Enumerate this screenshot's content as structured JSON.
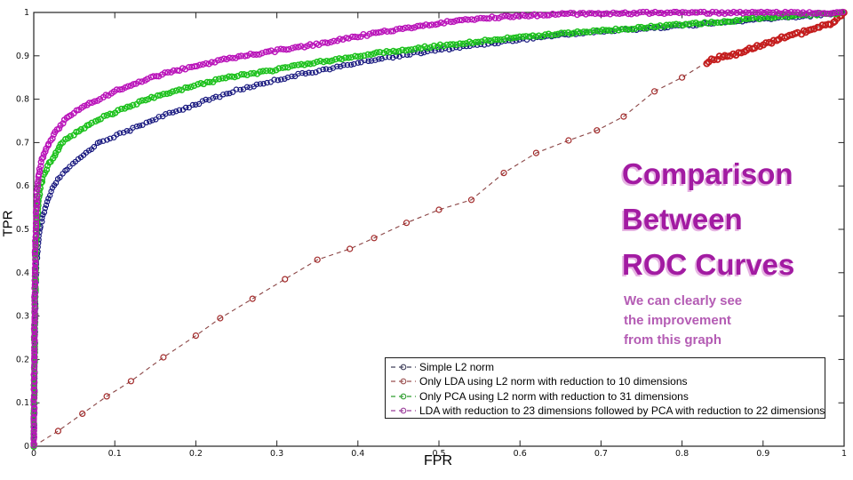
{
  "page": {
    "background": "#ffffff"
  },
  "title_block": {
    "lines": [
      "Comparison",
      "Between",
      "ROC Curves"
    ],
    "color": "#a21ba2",
    "shadow_color": "#e6b3e2",
    "subtitle_lines": [
      "We can clearly see",
      "the improvement",
      "from this graph"
    ],
    "subtitle_color": "#b45cb4"
  },
  "chart_data": {
    "type": "line",
    "title": "",
    "xlabel": "FPR",
    "ylabel": "TPR",
    "xlim": [
      0,
      1
    ],
    "ylim": [
      0,
      1
    ],
    "grid": false,
    "legend_position": "south-inside",
    "x_tick_labels": [
      "0",
      "0.1",
      "0.2",
      "0.3",
      "0.4",
      "0.5",
      "0.6",
      "0.7",
      "0.8",
      "0.9",
      "1"
    ],
    "y_tick_labels": [
      "0",
      "0.1",
      "0.2",
      "0.3",
      "0.4",
      "0.5",
      "0.6",
      "0.7",
      "0.8",
      "0.9",
      "1"
    ],
    "axis_color": "#222222",
    "series": [
      {
        "name": "Simple L2 norm",
        "color": "#15157d",
        "legend_color": "#40405c",
        "line_style": "dashed",
        "marker": "o",
        "marker_spacing": 4.0,
        "marker_radius": 2.6,
        "marker_stroke": 1.2,
        "points": [
          [
            0,
            0
          ],
          [
            0.001,
            0.2
          ],
          [
            0.002,
            0.32
          ],
          [
            0.003,
            0.41
          ],
          [
            0.005,
            0.46
          ],
          [
            0.008,
            0.5
          ],
          [
            0.012,
            0.535
          ],
          [
            0.017,
            0.565
          ],
          [
            0.023,
            0.592
          ],
          [
            0.03,
            0.615
          ],
          [
            0.042,
            0.64
          ],
          [
            0.058,
            0.665
          ],
          [
            0.08,
            0.7
          ],
          [
            0.1,
            0.715
          ],
          [
            0.12,
            0.73
          ],
          [
            0.15,
            0.755
          ],
          [
            0.18,
            0.775
          ],
          [
            0.21,
            0.795
          ],
          [
            0.25,
            0.82
          ],
          [
            0.29,
            0.84
          ],
          [
            0.33,
            0.858
          ],
          [
            0.37,
            0.872
          ],
          [
            0.41,
            0.888
          ],
          [
            0.46,
            0.903
          ],
          [
            0.51,
            0.916
          ],
          [
            0.56,
            0.928
          ],
          [
            0.61,
            0.94
          ],
          [
            0.66,
            0.95
          ],
          [
            0.71,
            0.957
          ],
          [
            0.76,
            0.964
          ],
          [
            0.81,
            0.971
          ],
          [
            0.86,
            0.978
          ],
          [
            0.91,
            0.986
          ],
          [
            0.96,
            0.993
          ],
          [
            1,
            1
          ]
        ]
      },
      {
        "name": "Only LDA using L2 norm with reduction to 10 dimensions",
        "color": "#8a4444",
        "marker_color": "#a32a2a",
        "dense_color": "#c41c1c",
        "legend_color": "#9a5050",
        "line_style": "dashed",
        "marker": "o",
        "marker_mode": "points",
        "dense_from": 0.83,
        "dense_spacing": 3.2,
        "marker_radius": 3.0,
        "marker_stroke": 1.2,
        "points": [
          [
            0,
            0
          ],
          [
            0.03,
            0.035
          ],
          [
            0.06,
            0.075
          ],
          [
            0.09,
            0.115
          ],
          [
            0.12,
            0.15
          ],
          [
            0.16,
            0.205
          ],
          [
            0.2,
            0.255
          ],
          [
            0.23,
            0.295
          ],
          [
            0.27,
            0.34
          ],
          [
            0.31,
            0.385
          ],
          [
            0.35,
            0.43
          ],
          [
            0.39,
            0.455
          ],
          [
            0.42,
            0.48
          ],
          [
            0.46,
            0.515
          ],
          [
            0.5,
            0.545
          ],
          [
            0.54,
            0.568
          ],
          [
            0.58,
            0.63
          ],
          [
            0.62,
            0.676
          ],
          [
            0.66,
            0.705
          ],
          [
            0.695,
            0.728
          ],
          [
            0.728,
            0.76
          ],
          [
            0.766,
            0.818
          ],
          [
            0.8,
            0.85
          ],
          [
            0.83,
            0.885
          ],
          [
            0.85,
            0.9
          ],
          [
            0.87,
            0.905
          ],
          [
            0.89,
            0.92
          ],
          [
            0.905,
            0.928
          ],
          [
            0.92,
            0.94
          ],
          [
            0.935,
            0.945
          ],
          [
            0.95,
            0.955
          ],
          [
            0.96,
            0.96
          ],
          [
            0.97,
            0.968
          ],
          [
            0.98,
            0.972
          ],
          [
            0.985,
            0.975
          ],
          [
            1,
            1
          ]
        ]
      },
      {
        "name": "Only PCA using L2 norm with reduction to 31 dimensions",
        "color": "#1dc11d",
        "legend_color": "#2f9e2f",
        "line_style": "dashed",
        "marker": "o",
        "marker_spacing": 3.6,
        "marker_radius": 2.9,
        "marker_stroke": 1.5,
        "points": [
          [
            0,
            0
          ],
          [
            0.001,
            0.25
          ],
          [
            0.002,
            0.38
          ],
          [
            0.003,
            0.47
          ],
          [
            0.004,
            0.52
          ],
          [
            0.006,
            0.565
          ],
          [
            0.008,
            0.6
          ],
          [
            0.012,
            0.625
          ],
          [
            0.018,
            0.648
          ],
          [
            0.025,
            0.668
          ],
          [
            0.035,
            0.7
          ],
          [
            0.05,
            0.72
          ],
          [
            0.07,
            0.745
          ],
          [
            0.09,
            0.762
          ],
          [
            0.11,
            0.778
          ],
          [
            0.14,
            0.8
          ],
          [
            0.17,
            0.817
          ],
          [
            0.2,
            0.832
          ],
          [
            0.24,
            0.85
          ],
          [
            0.28,
            0.862
          ],
          [
            0.32,
            0.875
          ],
          [
            0.36,
            0.888
          ],
          [
            0.4,
            0.9
          ],
          [
            0.45,
            0.912
          ],
          [
            0.5,
            0.923
          ],
          [
            0.55,
            0.933
          ],
          [
            0.6,
            0.943
          ],
          [
            0.65,
            0.951
          ],
          [
            0.7,
            0.958
          ],
          [
            0.75,
            0.965
          ],
          [
            0.8,
            0.972
          ],
          [
            0.85,
            0.979
          ],
          [
            0.9,
            0.988
          ],
          [
            0.95,
            0.994
          ],
          [
            1,
            1
          ]
        ]
      },
      {
        "name": "LDA with reduction to 23 dimensions followed by PCA with reduction to 22 dimensions",
        "color": "#b913b9",
        "legend_color": "#9a3d9a",
        "line_style": "dashed",
        "marker": "o",
        "marker_spacing": 3.4,
        "marker_radius": 2.9,
        "marker_stroke": 1.4,
        "points": [
          [
            0,
            0
          ],
          [
            0.001,
            0.32
          ],
          [
            0.002,
            0.45
          ],
          [
            0.003,
            0.545
          ],
          [
            0.004,
            0.585
          ],
          [
            0.006,
            0.625
          ],
          [
            0.009,
            0.655
          ],
          [
            0.013,
            0.675
          ],
          [
            0.019,
            0.7
          ],
          [
            0.027,
            0.725
          ],
          [
            0.04,
            0.755
          ],
          [
            0.055,
            0.775
          ],
          [
            0.075,
            0.795
          ],
          [
            0.1,
            0.818
          ],
          [
            0.13,
            0.84
          ],
          [
            0.16,
            0.858
          ],
          [
            0.2,
            0.877
          ],
          [
            0.24,
            0.893
          ],
          [
            0.28,
            0.906
          ],
          [
            0.32,
            0.918
          ],
          [
            0.36,
            0.93
          ],
          [
            0.4,
            0.945
          ],
          [
            0.44,
            0.958
          ],
          [
            0.48,
            0.97
          ],
          [
            0.52,
            0.98
          ],
          [
            0.56,
            0.987
          ],
          [
            0.6,
            0.992
          ],
          [
            0.65,
            0.996
          ],
          [
            0.7,
            0.998
          ],
          [
            0.8,
            0.9995
          ],
          [
            1,
            0.9995
          ]
        ]
      }
    ]
  }
}
